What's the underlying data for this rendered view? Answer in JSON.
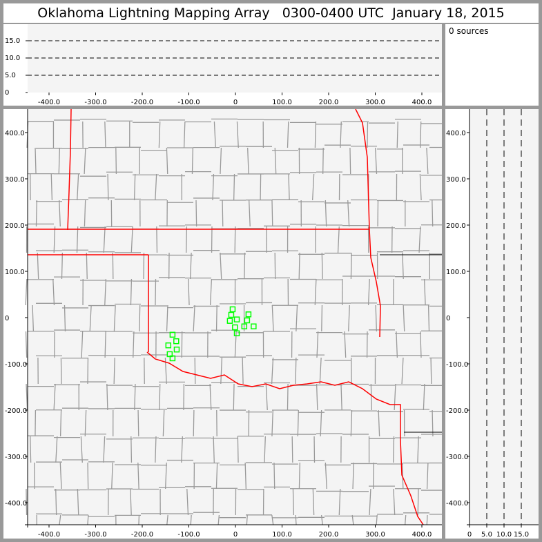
{
  "title": "Oklahoma Lightning Mapping Array   0300-0400 UTC  January 18, 2015",
  "info": {
    "source_count": "0 sources"
  },
  "colors": {
    "background_panel": "#f4f4f4",
    "state_border": "#ff0000",
    "county_border": "#999999",
    "source_marker": "#00ff00",
    "frame": "#999999"
  },
  "chart_data": [
    {
      "type": "line",
      "panel": "altitude-vs-east-west",
      "xlim": [
        -450,
        450
      ],
      "ylim": [
        0,
        20
      ],
      "x_ticks": [
        "-400.0",
        "-300.0",
        "-200.0",
        "-100.0",
        "0",
        "100.0",
        "200.0",
        "300.0",
        "400.0"
      ],
      "y_ticks": [
        "0",
        "5.0",
        "10.0",
        "15.0"
      ],
      "reference_lines": [
        5,
        10,
        15
      ],
      "grid": "dashed at 5, 10, 15"
    },
    {
      "type": "scatter",
      "panel": "plan-view-map",
      "xlim": [
        -450,
        450
      ],
      "ylim": [
        -450,
        450
      ],
      "x_ticks": [
        "-400.0",
        "-300.0",
        "-200.0",
        "-100.0",
        "0",
        "100.0",
        "200.0",
        "300.0",
        "400.0"
      ],
      "y_ticks": [
        "-400.0",
        "-300.0",
        "-200.0",
        "-100.0",
        "0",
        "100.0",
        "200.0",
        "300.0",
        "400.0"
      ],
      "marker": "hollow square",
      "points": [
        [
          -6,
          18
        ],
        [
          -9,
          6
        ],
        [
          3,
          -4
        ],
        [
          -12,
          -7
        ],
        [
          28,
          7
        ],
        [
          25,
          -6
        ],
        [
          19,
          -19
        ],
        [
          39,
          -19
        ],
        [
          -1,
          -21
        ],
        [
          3,
          -34
        ],
        [
          -135,
          -37
        ],
        [
          -127,
          -51
        ],
        [
          -144,
          -60
        ],
        [
          -126,
          -69
        ],
        [
          -141,
          -79
        ],
        [
          -135,
          -88
        ]
      ]
    },
    {
      "type": "line",
      "panel": "north-south-vs-altitude",
      "xlim": [
        0,
        20
      ],
      "ylim": [
        -450,
        450
      ],
      "x_ticks": [
        "0",
        "5.0",
        "10.0",
        "15.0"
      ],
      "y_ticks": [
        "-400.0",
        "-300.0",
        "-200.0",
        "-100.0",
        "0",
        "100.0",
        "200.0",
        "300.0",
        "400.0"
      ],
      "reference_lines": [
        5,
        10,
        15
      ],
      "grid": "dashed at 5, 10, 15"
    }
  ]
}
